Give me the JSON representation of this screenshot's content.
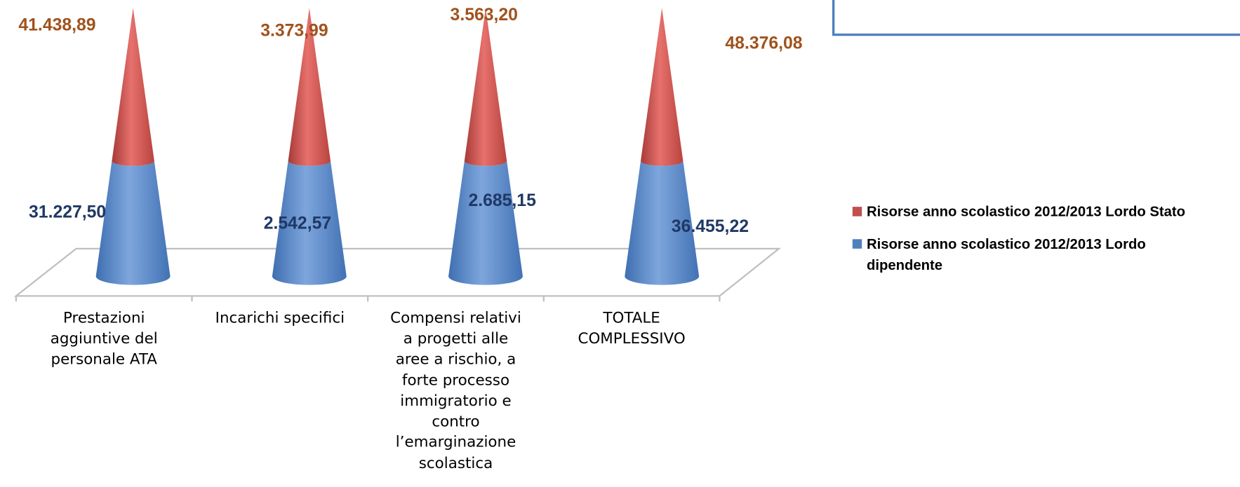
{
  "chart_data": {
    "type": "cone",
    "stacking": "percent",
    "categories": [
      "Prestazioni aggiuntive del personale ATA",
      "Incarichi specifici",
      "Compensi relativi a progetti alle aree a rischio,  a forte processo immigratorio e contro l’emarginazione scolastica",
      "TOTALE COMPLESSIVO"
    ],
    "series": [
      {
        "name": "Risorse anno scolastico 2012/2013 Lordo Stato",
        "color": "#c0504d",
        "values": [
          41438.89,
          3373.99,
          3563.2,
          48376.08
        ],
        "value_labels": [
          "41.438,89",
          "3.373,99",
          "3.563,20",
          "48.376,08"
        ]
      },
      {
        "name": "Risorse anno scolastico 2012/2013 Lordo dipendente",
        "color": "#4f81bd",
        "values": [
          31227.5,
          2542.57,
          2685.15,
          36455.22
        ],
        "value_labels": [
          "31.227,50",
          "2.542,57",
          "2.685,15",
          "36.455,22"
        ]
      }
    ],
    "legend": "right"
  }
}
